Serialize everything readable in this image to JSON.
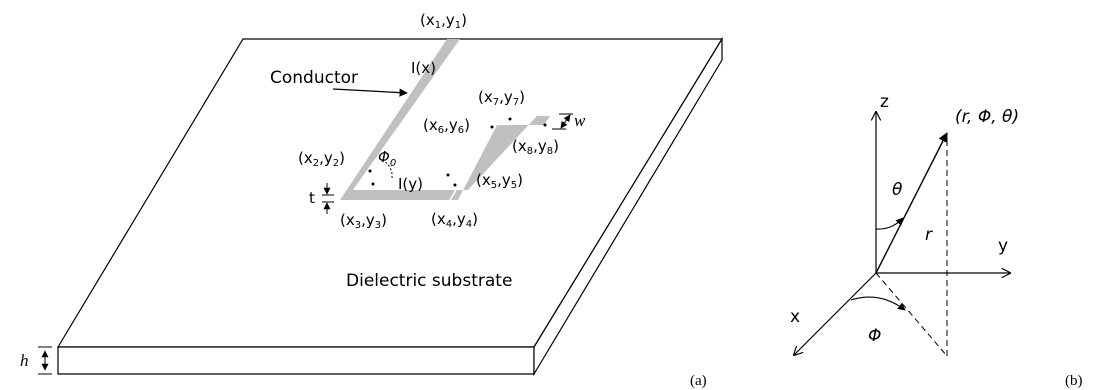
{
  "panel_a": {
    "caption": "(a)",
    "substrate_label": "Dielectric substrate",
    "conductor_label": "Conductor",
    "current_x": "I(x)",
    "current_y": "I(y)",
    "angle_label": "Φ",
    "angle_sub": "0",
    "thickness_label": "t",
    "width_label": "w",
    "height_label": "h",
    "points": [
      {
        "x": "x",
        "xs": "1",
        "y": "y",
        "ys": "1"
      },
      {
        "x": "x",
        "xs": "2",
        "y": "y",
        "ys": "2"
      },
      {
        "x": "x",
        "xs": "3",
        "y": "y",
        "ys": "3"
      },
      {
        "x": "x",
        "xs": "4",
        "y": "y",
        "ys": "4"
      },
      {
        "x": "x",
        "xs": "5",
        "y": "y",
        "ys": "5"
      },
      {
        "x": "x",
        "xs": "6",
        "y": "y",
        "ys": "6"
      },
      {
        "x": "x",
        "xs": "7",
        "y": "y",
        "ys": "7"
      },
      {
        "x": "x",
        "xs": "8",
        "y": "y",
        "ys": "8"
      }
    ]
  },
  "panel_b": {
    "caption": "(b)",
    "axis_x": "x",
    "axis_y": "y",
    "axis_z": "z",
    "theta": "θ",
    "phi": "Φ",
    "r": "r",
    "coord": "(r, Φ, θ)"
  },
  "colors": {
    "conductor": "#c0c0c0",
    "lines": "#000000"
  }
}
